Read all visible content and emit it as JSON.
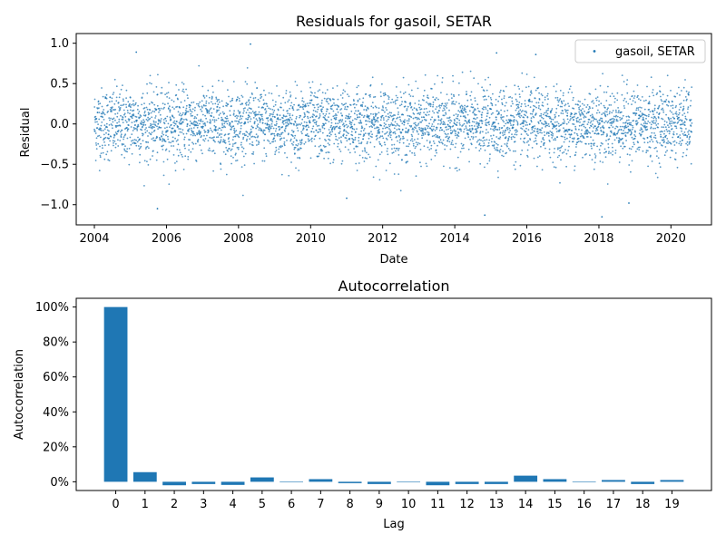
{
  "chart_data": [
    {
      "type": "scatter",
      "title": "Residuals for gasoil, SETAR",
      "xlabel": "Date",
      "ylabel": "Residual",
      "xlim": [
        "2003-07-01",
        "2021-02-15"
      ],
      "ylim": [
        -1.25,
        1.12
      ],
      "x_ticks": [
        "2004",
        "2006",
        "2008",
        "2010",
        "2012",
        "2014",
        "2016",
        "2018",
        "2020"
      ],
      "y_ticks": [
        "1.0",
        "0.5",
        "0.0",
        "−0.5",
        "−1.0"
      ],
      "x_range": [
        "2004-01-01",
        "2020-07-31"
      ],
      "residual_spread": 0.22,
      "series": [
        {
          "name": "gasoil, SETAR",
          "color": "#1f77b4",
          "marker": "dot",
          "notable_points": [
            {
              "x": "2008-05-01",
              "y": 0.99
            },
            {
              "x": "2005-03-01",
              "y": 0.89
            },
            {
              "x": "2015-03-01",
              "y": 0.88
            },
            {
              "x": "2016-04-01",
              "y": 0.86
            },
            {
              "x": "2005-10-01",
              "y": -1.05
            },
            {
              "x": "2014-11-01",
              "y": -1.13
            },
            {
              "x": "2018-02-01",
              "y": -1.15
            },
            {
              "x": "2011-01-01",
              "y": -0.92
            },
            {
              "x": "2018-11-01",
              "y": -0.98
            }
          ]
        }
      ],
      "legend": {
        "position": "top-right",
        "entries": [
          "gasoil, SETAR"
        ]
      },
      "grid": false
    },
    {
      "type": "bar",
      "title": "Autocorrelation",
      "xlabel": "Lag",
      "ylabel": "Autocorrelation",
      "categories": [
        "0",
        "1",
        "2",
        "3",
        "4",
        "5",
        "6",
        "7",
        "8",
        "9",
        "10",
        "11",
        "12",
        "13",
        "14",
        "15",
        "16",
        "17",
        "18",
        "19"
      ],
      "values": [
        1.0,
        0.055,
        -0.02,
        -0.013,
        -0.018,
        0.025,
        -0.003,
        0.015,
        -0.008,
        -0.013,
        0.0,
        -0.02,
        -0.013,
        -0.013,
        0.035,
        0.015,
        -0.003,
        0.01,
        -0.013,
        0.01
      ],
      "ylim": [
        -0.05,
        1.05
      ],
      "y_ticks": [
        "0%",
        "20%",
        "40%",
        "60%",
        "80%",
        "100%"
      ],
      "color": "#1f77b4",
      "grid": false
    }
  ]
}
